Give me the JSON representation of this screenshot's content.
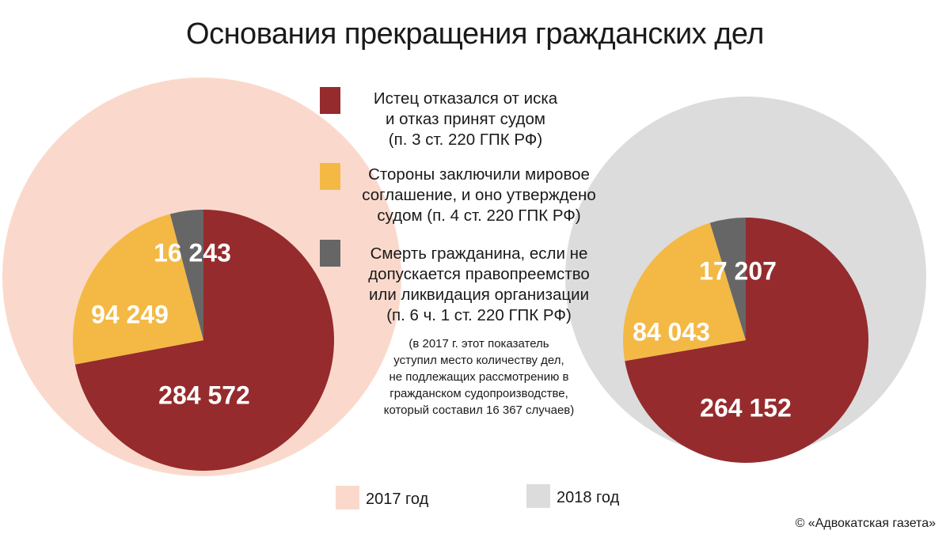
{
  "title": "Основания прекращения гражданских дел",
  "colors": {
    "refusal": "#952b2d",
    "settlement": "#f3b944",
    "death": "#666666",
    "outer_2017": "#fad9cc",
    "outer_2018": "#dcdcdc",
    "label_text": "#ffffff"
  },
  "legend": [
    {
      "key": "refusal",
      "text": "Истец отказался от иска\nи отказ принят судом\n(п. 3 ст. 220 ГПК РФ)"
    },
    {
      "key": "settlement",
      "text": "Стороны заключили мировое\nсоглашение, и оно утверждено\nсудом (п. 4 ст. 220 ГПК РФ)"
    },
    {
      "key": "death",
      "text": "Смерть гражданина, если не\nдопускается правопреемство\nили ликвидация организации\n(п. 6 ч. 1 ст. 220 ГПК РФ)"
    }
  ],
  "note": "(в 2017 г. этот показатель\nуступил место количеству дел,\nне подлежащих рассмотрению в\nгражданском судопроизводстве,\nкоторый составил 16 367 случаев)",
  "years": [
    {
      "label": "2017 год",
      "color_key": "outer_2017"
    },
    {
      "label": "2018 год",
      "color_key": "outer_2018"
    }
  ],
  "credit": "© «Адвокатская газета»",
  "chart_data": [
    {
      "type": "pie",
      "series_name": "2017 год",
      "categories": [
        "Истец отказался от иска",
        "Стороны заключили мировое соглашение",
        "Смерть гражданина"
      ],
      "values": [
        284572,
        94249,
        16243
      ],
      "labels": [
        "284 572",
        "94 249",
        "16 243"
      ]
    },
    {
      "type": "pie",
      "series_name": "2018 год",
      "categories": [
        "Истец отказался от иска",
        "Стороны заключили мировое соглашение",
        "Смерть гражданина"
      ],
      "values": [
        264152,
        84043,
        17207
      ],
      "labels": [
        "264 152",
        "84 043",
        "17 207"
      ]
    }
  ]
}
